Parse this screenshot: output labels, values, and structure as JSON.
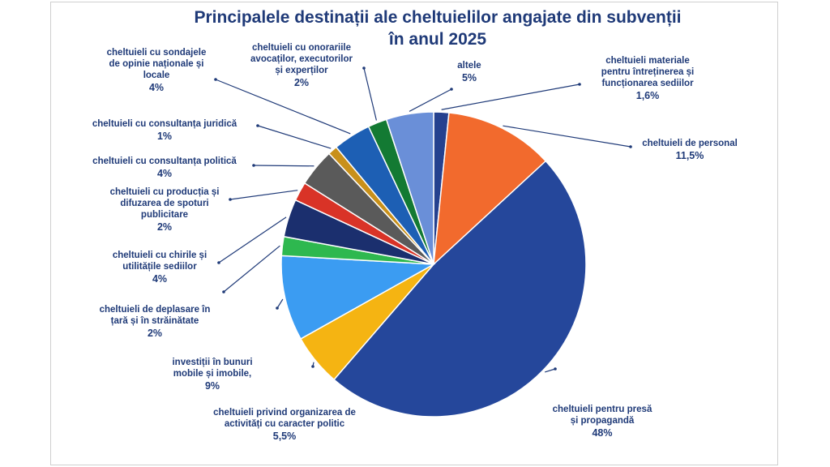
{
  "chart_data": {
    "type": "pie",
    "title_lines": [
      "Principalele destinații ale cheltuielilor angajate din subvenții",
      "în anul 2025"
    ],
    "slices": [
      {
        "name": [
          "cheltuieli materiale",
          "pentru întreținerea și",
          "funcționarea sediilor"
        ],
        "value": 1.6,
        "label": "1,6%",
        "color": "#25418f"
      },
      {
        "name": [
          "cheltuieli de personal"
        ],
        "value": 11.5,
        "label": "11,5%",
        "color": "#f26a2d"
      },
      {
        "name": [
          "cheltuieli pentru presă",
          "și propagandă"
        ],
        "value": 48,
        "label": "48%",
        "color": "#25479b"
      },
      {
        "name": [
          "cheltuieli privind organizarea de",
          "activități cu caracter politic"
        ],
        "value": 5.5,
        "label": "5,5%",
        "color": "#f5b412"
      },
      {
        "name": [
          "investiții în bunuri",
          "mobile și imobile,"
        ],
        "value": 9,
        "label": "9%",
        "color": "#3b9cf2"
      },
      {
        "name": [
          "cheltuieli de deplasare în",
          "țară și în străinătate"
        ],
        "value": 2,
        "label": "2%",
        "color": "#2eb84f"
      },
      {
        "name": [
          "cheltuieli cu chirile și",
          "utilitățile sediilor"
        ],
        "value": 4,
        "label": "4%",
        "color": "#1b2f6e"
      },
      {
        "name": [
          "cheltuieli cu producția și",
          "difuzarea de spoturi",
          "publicitare"
        ],
        "value": 2,
        "label": "2%",
        "color": "#d93327"
      },
      {
        "name": [
          "cheltuieli cu consultanța politică"
        ],
        "value": 4,
        "label": "4%",
        "color": "#5a5a5a"
      },
      {
        "name": [
          "cheltuieli cu consultanța juridică"
        ],
        "value": 1,
        "label": "1%",
        "color": "#c8901a"
      },
      {
        "name": [
          "cheltuieli cu sondajele",
          "de opinie naționale și",
          "locale"
        ],
        "value": 4,
        "label": "4%",
        "color": "#1d5fb4"
      },
      {
        "name": [
          "cheltuieli cu onorariile",
          "avocaților, executorilor",
          "și experților"
        ],
        "value": 2,
        "label": "2%",
        "color": "#137a33"
      },
      {
        "name": [
          "altele"
        ],
        "value": 5,
        "label": "5%",
        "color": "#6a8fd8"
      }
    ]
  }
}
